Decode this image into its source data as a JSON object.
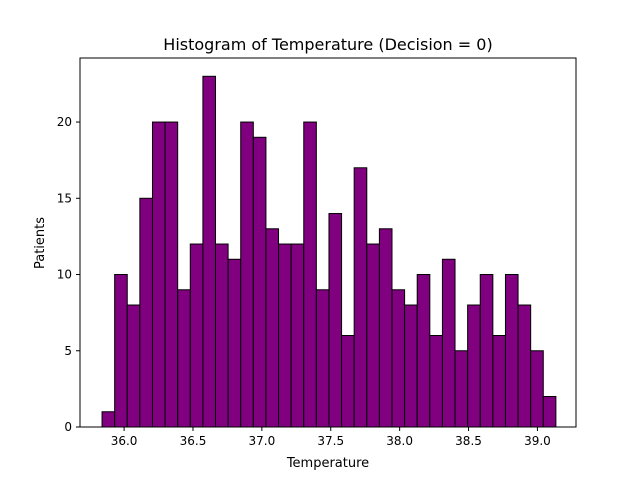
{
  "chart_data": {
    "type": "bar",
    "title": "Histogram of Temperature (Decision = 0)",
    "xlabel": "Temperature",
    "ylabel": "Patients",
    "bin_start": 35.84,
    "bin_width": 0.0915,
    "values": [
      1,
      10,
      8,
      15,
      20,
      20,
      9,
      12,
      23,
      12,
      11,
      20,
      19,
      13,
      12,
      12,
      20,
      9,
      14,
      6,
      17,
      12,
      13,
      9,
      8,
      10,
      6,
      11,
      5,
      8,
      10,
      6,
      10,
      8,
      5,
      2
    ],
    "xlim": [
      35.68,
      39.28
    ],
    "ylim": [
      0,
      24.2
    ],
    "xticks": [
      "36.0",
      "36.5",
      "37.0",
      "37.5",
      "38.0",
      "38.5",
      "39.0"
    ],
    "yticks": [
      "0",
      "5",
      "10",
      "15",
      "20"
    ],
    "bar_color": "#800080",
    "edge_color": "#000000",
    "grid": false
  }
}
